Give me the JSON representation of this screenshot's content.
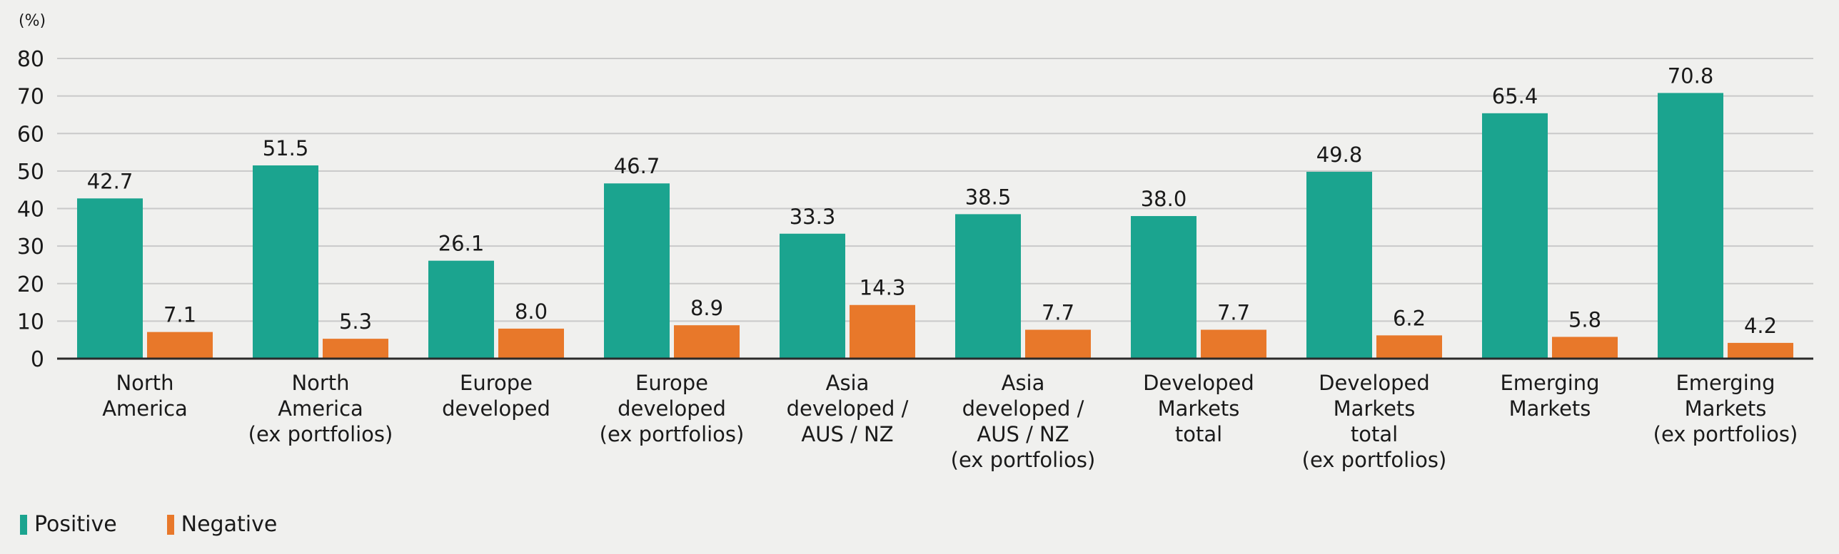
{
  "colors": {
    "positive": "#1ba48f",
    "negative": "#e8782a",
    "grid": "#c9c9c9",
    "axis": "#2a2a2a"
  },
  "chart_data": {
    "type": "bar",
    "unit_label": "(%)",
    "ylim": [
      0,
      80
    ],
    "yticks": [
      0,
      10,
      20,
      30,
      40,
      50,
      60,
      70,
      80
    ],
    "grid": true,
    "legend_position": "bottom-left",
    "categories": [
      [
        "North",
        "America"
      ],
      [
        "North",
        "America",
        "(ex portfolios)"
      ],
      [
        "Europe",
        "developed"
      ],
      [
        "Europe",
        "developed",
        "(ex portfolios)"
      ],
      [
        "Asia",
        "developed /",
        "AUS / NZ"
      ],
      [
        "Asia",
        "developed /",
        "AUS / NZ",
        "(ex portfolios)"
      ],
      [
        "Developed",
        "Markets",
        "total"
      ],
      [
        "Developed",
        "Markets",
        "total",
        "(ex portfolios)"
      ],
      [
        "Emerging",
        "Markets"
      ],
      [
        "Emerging",
        "Markets",
        "(ex portfolios)"
      ]
    ],
    "series": [
      {
        "name": "Positive",
        "values": [
          42.7,
          51.5,
          26.1,
          46.7,
          33.3,
          38.5,
          38.0,
          49.8,
          65.4,
          70.8
        ]
      },
      {
        "name": "Negative",
        "values": [
          7.1,
          5.3,
          8.0,
          8.9,
          14.3,
          7.7,
          7.7,
          6.2,
          5.8,
          4.2
        ]
      }
    ]
  },
  "legend": {
    "positive": "Positive",
    "negative": "Negative"
  }
}
